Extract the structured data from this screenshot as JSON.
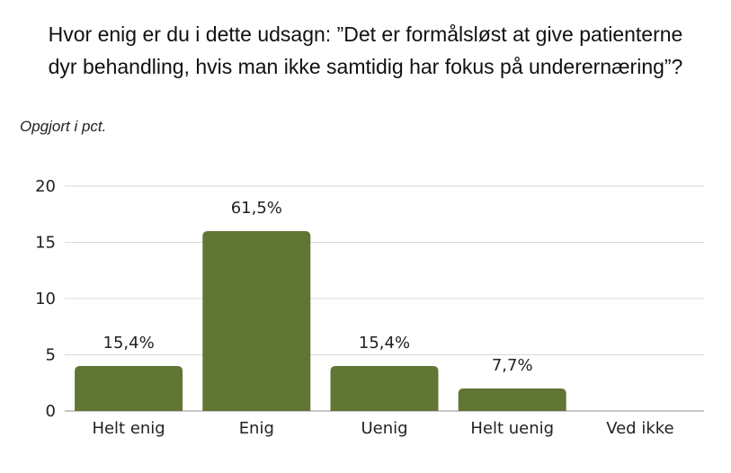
{
  "title_lines": [
    "Hvor enig er du i dette udsagn: ”Det er formålsløst at give patienterne",
    "dyr behandling, hvis man ikke samtidig har fokus på underernæring”?"
  ],
  "subtitle": "Opgjort i pct.",
  "colors": {
    "bar": "#617535",
    "grid": "#d9d9d9",
    "axis": "#8c8c8c"
  },
  "chart_data": {
    "type": "bar",
    "categories": [
      "Helt enig",
      "Enig",
      "Uenig",
      "Helt uenig",
      "Ved ikke"
    ],
    "values": [
      4,
      16,
      4,
      2,
      0
    ],
    "data_labels": [
      "15,4%",
      "61,5%",
      "15,4%",
      "7,7%",
      ""
    ],
    "ylim": [
      0,
      20
    ],
    "yticks": [
      0,
      5,
      10,
      15,
      20
    ],
    "grid": true,
    "legend": "none"
  }
}
